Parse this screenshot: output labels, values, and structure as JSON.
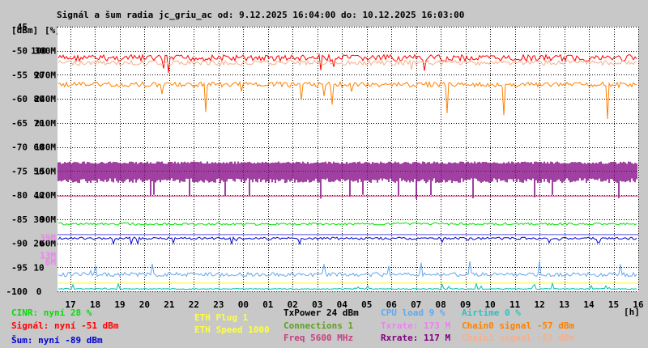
{
  "chart_data": {
    "type": "line",
    "title": "Signál a šum radia jc_griu_ac od: 9.12.2025 16:04:00 do: 10.12.2025 16:03:00",
    "axis_headers": {
      "dbm": "[dBm]",
      "pct": "[%]",
      "hours": "[h]"
    },
    "y_dbm_ticks": [
      "-45",
      "-50",
      "-55",
      "-60",
      "-65",
      "-70",
      "-75",
      "-80",
      "-85",
      "-90",
      "-95",
      "-100"
    ],
    "y_pct_ticks": [
      "100",
      "90",
      "80",
      "70",
      "60",
      "50",
      "40",
      "30",
      "20",
      "10",
      "0"
    ],
    "y_rate_ticks": [
      "300M",
      "270M",
      "240M",
      "210M",
      "180M",
      "150M",
      "120M",
      "90M",
      "60M"
    ],
    "y_small_ticks": [
      "39M",
      "13M",
      "6M"
    ],
    "ylim_dbm": [
      -100,
      -45
    ],
    "x_ticks": [
      "17",
      "18",
      "19",
      "20",
      "21",
      "22",
      "23",
      "00",
      "01",
      "02",
      "03",
      "04",
      "05",
      "06",
      "07",
      "08",
      "09",
      "10",
      "11",
      "12",
      "13",
      "14",
      "15",
      "16"
    ],
    "series": [
      {
        "name": "Signál",
        "unit": "dBm",
        "approx_level": -51,
        "color": "#ff0000"
      },
      {
        "name": "Chain1 signal",
        "unit": "dBm",
        "approx_level": -52,
        "color": "#f5b08c"
      },
      {
        "name": "Txrate",
        "unit": "M",
        "approx_level": 173,
        "color": "#800080"
      },
      {
        "name": "Freq",
        "unit": "MHz",
        "approx_level": 5600,
        "color": "#c8407f"
      },
      {
        "name": "Chain0 signal",
        "unit": "dBm",
        "approx_level": -57,
        "color": "#ff8000"
      },
      {
        "name": "CINR",
        "unit": "%",
        "approx_level": 28,
        "color": "#00e000"
      },
      {
        "name": "Šum",
        "unit": "dBm",
        "approx_level": -89,
        "color": "#0000d0"
      },
      {
        "name": "Rxrate",
        "unit": "M",
        "approx_level": 117,
        "color": "#5a4ed8"
      },
      {
        "name": "CPU load",
        "unit": "%",
        "approx_level": 9,
        "color": "#60a8f0"
      },
      {
        "name": "Airtime",
        "unit": "%",
        "approx_level": 0,
        "color": "#00c0b0"
      },
      {
        "name": "ETH Speed",
        "unit": "",
        "approx_level": 1000,
        "color": "#ffff00"
      }
    ],
    "grid": true,
    "legend_placement": "bottom"
  },
  "legend": [
    {
      "text": "CINR: nyní 28 %",
      "color": "#00e000"
    },
    {
      "text": "Signál: nyní -51 dBm",
      "color": "#ff0000"
    },
    {
      "text": "Šum: nyní -89 dBm",
      "color": "#0000d0"
    },
    {
      "text": "ETH Plug 1",
      "color": "#ffff40"
    },
    {
      "text": "ETH Speed 1000",
      "color": "#ffff40"
    },
    {
      "text": "TxPower 24 dBm",
      "color": "#000000"
    },
    {
      "text": "Connections 1",
      "color": "#60a020"
    },
    {
      "text": "Freq 5600 MHz",
      "color": "#c8407f"
    },
    {
      "text": "CPU load 9 %",
      "color": "#60a8f0"
    },
    {
      "text": "Txrate: 173 M",
      "color": "#ee82ee"
    },
    {
      "text": "Rxrate: 117 M",
      "color": "#800080"
    },
    {
      "text": "Airtime 0 %",
      "color": "#30c0c0"
    },
    {
      "text": "Chain0 signal -57 dBm",
      "color": "#ff8000"
    },
    {
      "text": "Chain1 signal -52 dBm",
      "color": "#f5b08c"
    }
  ]
}
